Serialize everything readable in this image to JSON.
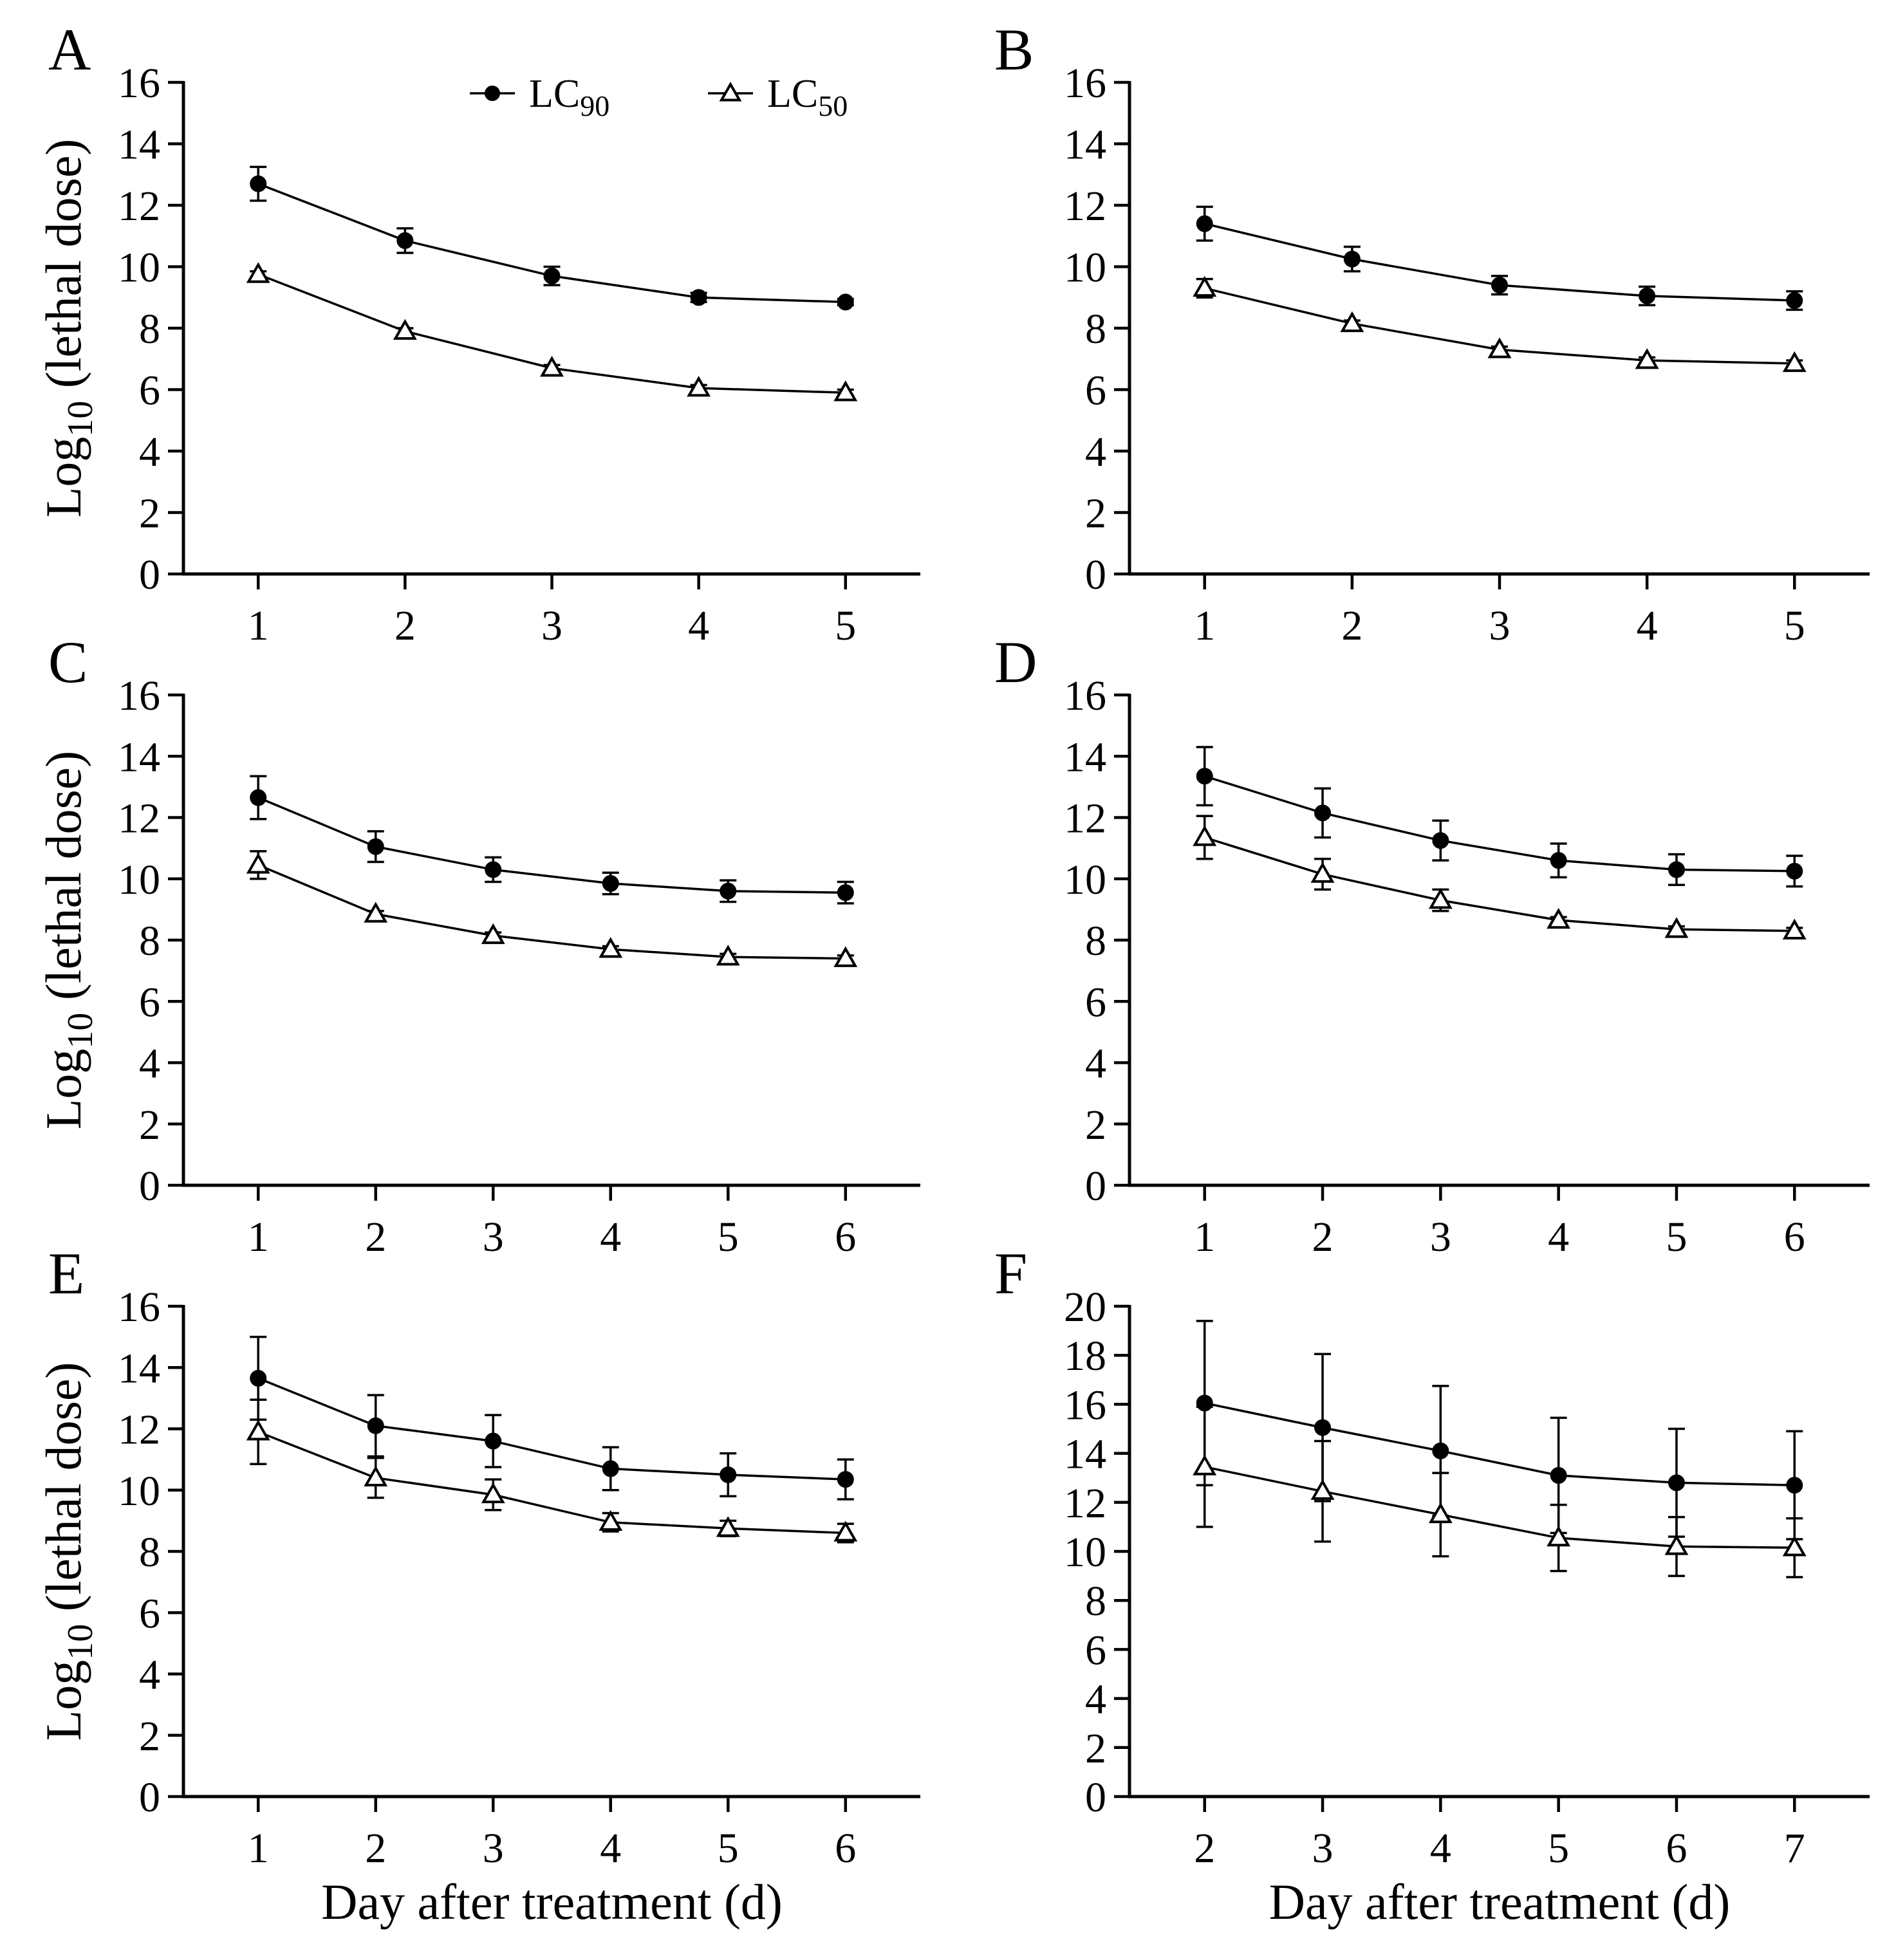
{
  "figure": {
    "ylabel": "Log10 (lethal dose)",
    "ylabel_parts": {
      "main": "Log",
      "sub": "10",
      "rest": " (lethal dose)"
    },
    "xlabel": "Day after treatment (d)",
    "legend": {
      "position": "top-right of panel A",
      "items": [
        {
          "label": "LC",
          "sub": "90",
          "marker": "filled-circle"
        },
        {
          "label": "LC",
          "sub": "50",
          "marker": "open-triangle"
        }
      ]
    },
    "colors": {
      "line": "#000000",
      "background": "#ffffff"
    }
  },
  "chart_data": [
    {
      "panel": "A",
      "type": "line",
      "x": [
        1,
        2,
        3,
        4,
        5
      ],
      "ylim": [
        0,
        16
      ],
      "yticks": [
        0,
        2,
        4,
        6,
        8,
        10,
        12,
        14,
        16
      ],
      "series": [
        {
          "name": "LC90",
          "marker": "filled-circle",
          "y": [
            12.7,
            10.85,
            9.7,
            9.0,
            8.85
          ],
          "err": [
            0.55,
            0.4,
            0.3,
            0.15,
            0.1
          ]
        },
        {
          "name": "LC50",
          "marker": "open-triangle",
          "y": [
            9.75,
            7.9,
            6.7,
            6.05,
            5.9
          ],
          "err": [
            0.1,
            0.1,
            0.1,
            0.1,
            0.1
          ]
        }
      ]
    },
    {
      "panel": "B",
      "type": "line",
      "x": [
        1,
        2,
        3,
        4,
        5
      ],
      "ylim": [
        0,
        16
      ],
      "yticks": [
        0,
        2,
        4,
        6,
        8,
        10,
        12,
        14,
        16
      ],
      "series": [
        {
          "name": "LC90",
          "marker": "filled-circle",
          "y": [
            11.4,
            10.25,
            9.4,
            9.05,
            8.9
          ],
          "err": [
            0.55,
            0.4,
            0.3,
            0.3,
            0.3
          ]
        },
        {
          "name": "LC50",
          "marker": "open-triangle",
          "y": [
            9.3,
            8.15,
            7.3,
            6.95,
            6.85
          ],
          "err": [
            0.3,
            0.1,
            0.1,
            0.1,
            0.1
          ]
        }
      ]
    },
    {
      "panel": "C",
      "type": "line",
      "x": [
        1,
        2,
        3,
        4,
        5,
        6
      ],
      "ylim": [
        0,
        16
      ],
      "yticks": [
        0,
        2,
        4,
        6,
        8,
        10,
        12,
        14,
        16
      ],
      "series": [
        {
          "name": "LC90",
          "marker": "filled-circle",
          "y": [
            12.65,
            11.05,
            10.3,
            9.85,
            9.6,
            9.55
          ],
          "err": [
            0.7,
            0.5,
            0.4,
            0.35,
            0.35,
            0.35
          ]
        },
        {
          "name": "LC50",
          "marker": "open-triangle",
          "y": [
            10.45,
            8.85,
            8.15,
            7.7,
            7.45,
            7.4
          ],
          "err": [
            0.45,
            0.1,
            0.1,
            0.1,
            0.1,
            0.1
          ]
        }
      ]
    },
    {
      "panel": "D",
      "type": "line",
      "x": [
        1,
        2,
        3,
        4,
        5,
        6
      ],
      "ylim": [
        0,
        16
      ],
      "yticks": [
        0,
        2,
        4,
        6,
        8,
        10,
        12,
        14,
        16
      ],
      "series": [
        {
          "name": "LC90",
          "marker": "filled-circle",
          "y": [
            13.35,
            12.15,
            11.25,
            10.6,
            10.3,
            10.25
          ],
          "err": [
            0.95,
            0.8,
            0.65,
            0.55,
            0.5,
            0.5
          ]
        },
        {
          "name": "LC50",
          "marker": "open-triangle",
          "y": [
            11.35,
            10.15,
            9.3,
            8.65,
            8.35,
            8.3
          ],
          "err": [
            0.7,
            0.5,
            0.35,
            0.1,
            0.1,
            0.1
          ]
        }
      ]
    },
    {
      "panel": "E",
      "type": "line",
      "x": [
        1,
        2,
        3,
        4,
        5,
        6
      ],
      "ylim": [
        0,
        16
      ],
      "yticks": [
        0,
        2,
        4,
        6,
        8,
        10,
        12,
        14,
        16
      ],
      "series": [
        {
          "name": "LC90",
          "marker": "filled-circle",
          "y": [
            13.65,
            12.1,
            11.6,
            10.7,
            10.5,
            10.35
          ],
          "err": [
            1.35,
            1.0,
            0.85,
            0.7,
            0.7,
            0.65
          ]
        },
        {
          "name": "LC50",
          "marker": "open-triangle",
          "y": [
            11.9,
            10.4,
            9.85,
            8.95,
            8.75,
            8.6
          ],
          "err": [
            1.05,
            0.65,
            0.5,
            0.3,
            0.25,
            0.3
          ]
        }
      ]
    },
    {
      "panel": "F",
      "type": "line",
      "x": [
        2,
        3,
        4,
        5,
        6,
        7
      ],
      "ylim": [
        0,
        20
      ],
      "yticks": [
        0,
        2,
        4,
        6,
        8,
        10,
        12,
        14,
        16,
        18,
        20
      ],
      "series": [
        {
          "name": "LC90",
          "marker": "filled-circle",
          "y": [
            16.05,
            15.05,
            14.1,
            13.1,
            12.8,
            12.7
          ],
          "err": [
            3.35,
            3.0,
            2.65,
            2.35,
            2.2,
            2.2
          ]
        },
        {
          "name": "LC50",
          "marker": "open-triangle",
          "y": [
            13.45,
            12.45,
            11.5,
            10.55,
            10.2,
            10.15
          ],
          "err": [
            2.45,
            2.05,
            1.7,
            1.35,
            1.2,
            1.2
          ]
        }
      ]
    }
  ]
}
